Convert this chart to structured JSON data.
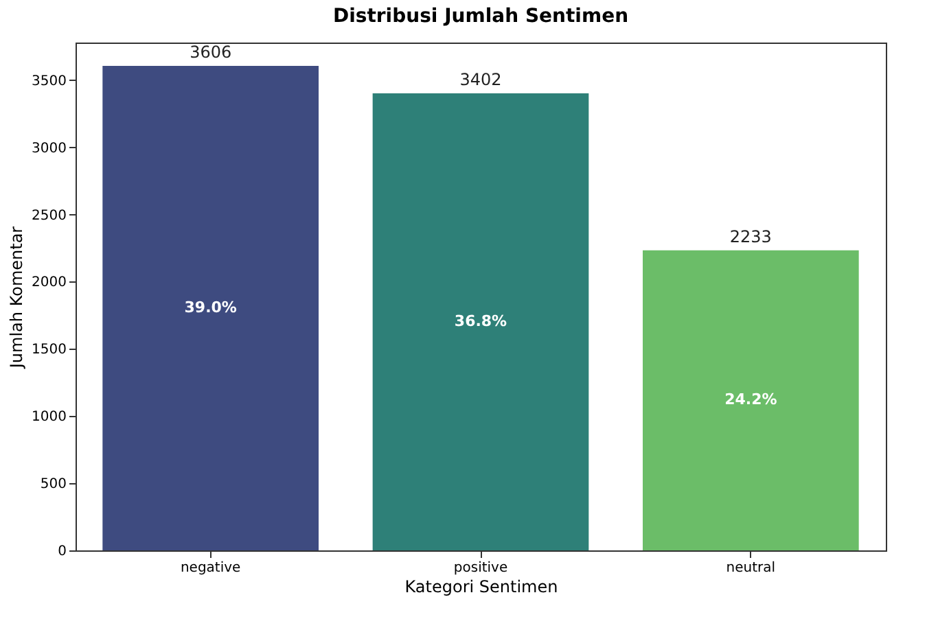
{
  "chart_data": {
    "type": "bar",
    "title": "Distribusi Jumlah Sentimen",
    "xlabel": "Kategori Sentimen",
    "ylabel": "Jumlah Komentar",
    "categories": [
      "negative",
      "positive",
      "neutral"
    ],
    "values": [
      3606,
      3402,
      2233
    ],
    "colors": [
      "#3e4b80",
      "#2e8078",
      "#6bbd68"
    ],
    "ylim": [
      0,
      3780
    ],
    "yticks": [
      0,
      500,
      1000,
      1500,
      2000,
      2500,
      3000,
      3500
    ],
    "grid": false,
    "data_labels": true,
    "annotations": [
      "39.0%",
      "36.8%",
      "24.2%"
    ]
  }
}
